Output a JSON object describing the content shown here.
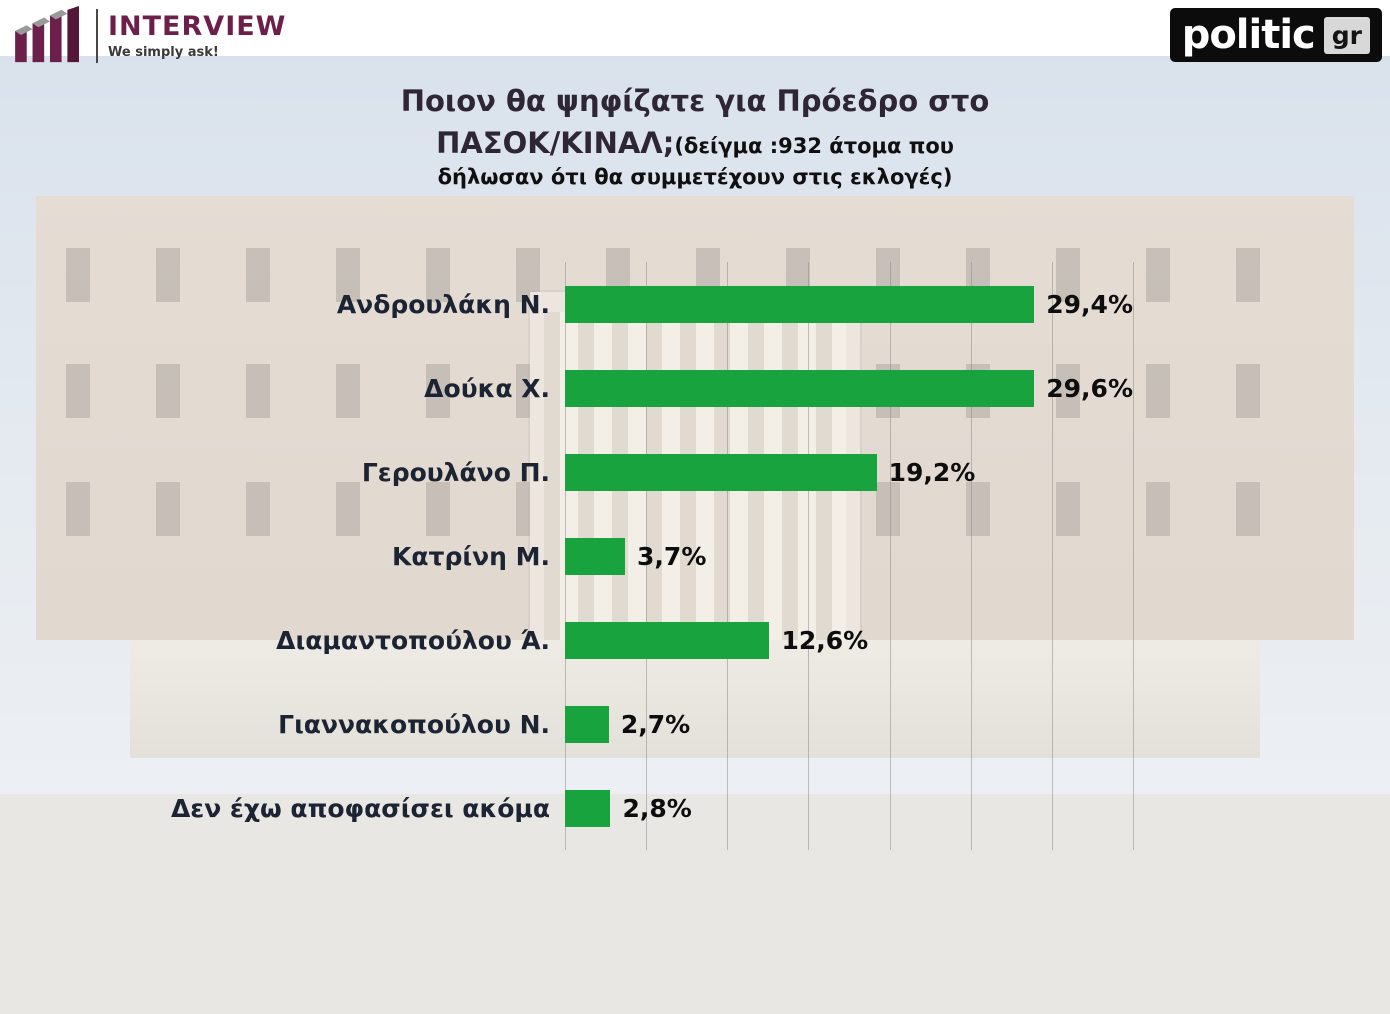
{
  "header": {
    "interview": {
      "name": "INTERVIEW",
      "tagline": "We simply ask!"
    },
    "politic": {
      "name": "politic",
      "tld": "gr"
    }
  },
  "title": {
    "line1": "Ποιον θα ψηφίζατε για Πρόεδρο στο",
    "line2_main": "ΠΑΣΟΚ/ΚΙΝΑΛ;",
    "line2_note": "(δείγμα :932 άτομα που",
    "line3": "δήλωσαν ότι θα συμμετέχουν στις εκλογές)"
  },
  "chart_data": {
    "type": "bar",
    "orientation": "horizontal",
    "title": "Ποιον θα ψηφίζατε για Πρόεδρο στο ΠΑΣΟΚ/ΚΙΝΑΛ;",
    "subtitle": "(δείγμα :932 άτομα που δήλωσαν ότι θα συμμετέχουν στις εκλογές)",
    "categories": [
      "Ανδρουλάκη Ν.",
      "Δούκα Χ.",
      "Γερουλάνο Π.",
      "Κατρίνη Μ.",
      "Διαμαντοπούλου Ά.",
      "Γιαννακοπούλου Ν.",
      "Δεν έχω αποφασίσει ακόμα"
    ],
    "values": [
      29.4,
      29.6,
      19.2,
      3.7,
      12.6,
      2.7,
      2.8
    ],
    "value_labels": [
      "29,4%",
      "29,6%",
      "19,2%",
      "3,7%",
      "12,6%",
      "2,7%",
      "2,8%"
    ],
    "bar_color": "#18a33e",
    "xlim": [
      0,
      35
    ],
    "grid": true,
    "grid_interval": 5,
    "legend": false
  }
}
